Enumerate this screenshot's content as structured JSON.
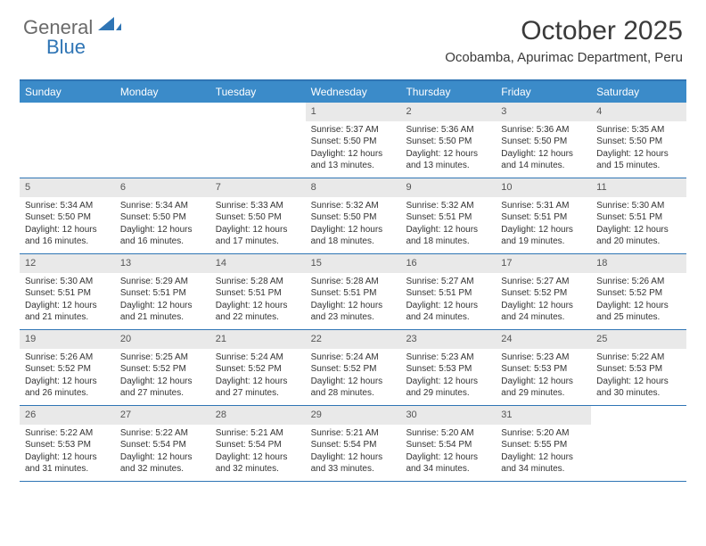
{
  "logo": {
    "part1": "General",
    "part2": "Blue"
  },
  "title": "October 2025",
  "location": "Ocobamba, Apurimac Department, Peru",
  "colors": {
    "header_bar": "#3b8bc9",
    "border": "#2f75b5",
    "daynum_bg": "#e9e9e9",
    "text": "#333333"
  },
  "weekdays": [
    "Sunday",
    "Monday",
    "Tuesday",
    "Wednesday",
    "Thursday",
    "Friday",
    "Saturday"
  ],
  "weeks": [
    [
      {
        "n": "",
        "sr": "",
        "ss": "",
        "dl": ""
      },
      {
        "n": "",
        "sr": "",
        "ss": "",
        "dl": ""
      },
      {
        "n": "",
        "sr": "",
        "ss": "",
        "dl": ""
      },
      {
        "n": "1",
        "sr": "Sunrise: 5:37 AM",
        "ss": "Sunset: 5:50 PM",
        "dl": "Daylight: 12 hours and 13 minutes."
      },
      {
        "n": "2",
        "sr": "Sunrise: 5:36 AM",
        "ss": "Sunset: 5:50 PM",
        "dl": "Daylight: 12 hours and 13 minutes."
      },
      {
        "n": "3",
        "sr": "Sunrise: 5:36 AM",
        "ss": "Sunset: 5:50 PM",
        "dl": "Daylight: 12 hours and 14 minutes."
      },
      {
        "n": "4",
        "sr": "Sunrise: 5:35 AM",
        "ss": "Sunset: 5:50 PM",
        "dl": "Daylight: 12 hours and 15 minutes."
      }
    ],
    [
      {
        "n": "5",
        "sr": "Sunrise: 5:34 AM",
        "ss": "Sunset: 5:50 PM",
        "dl": "Daylight: 12 hours and 16 minutes."
      },
      {
        "n": "6",
        "sr": "Sunrise: 5:34 AM",
        "ss": "Sunset: 5:50 PM",
        "dl": "Daylight: 12 hours and 16 minutes."
      },
      {
        "n": "7",
        "sr": "Sunrise: 5:33 AM",
        "ss": "Sunset: 5:50 PM",
        "dl": "Daylight: 12 hours and 17 minutes."
      },
      {
        "n": "8",
        "sr": "Sunrise: 5:32 AM",
        "ss": "Sunset: 5:50 PM",
        "dl": "Daylight: 12 hours and 18 minutes."
      },
      {
        "n": "9",
        "sr": "Sunrise: 5:32 AM",
        "ss": "Sunset: 5:51 PM",
        "dl": "Daylight: 12 hours and 18 minutes."
      },
      {
        "n": "10",
        "sr": "Sunrise: 5:31 AM",
        "ss": "Sunset: 5:51 PM",
        "dl": "Daylight: 12 hours and 19 minutes."
      },
      {
        "n": "11",
        "sr": "Sunrise: 5:30 AM",
        "ss": "Sunset: 5:51 PM",
        "dl": "Daylight: 12 hours and 20 minutes."
      }
    ],
    [
      {
        "n": "12",
        "sr": "Sunrise: 5:30 AM",
        "ss": "Sunset: 5:51 PM",
        "dl": "Daylight: 12 hours and 21 minutes."
      },
      {
        "n": "13",
        "sr": "Sunrise: 5:29 AM",
        "ss": "Sunset: 5:51 PM",
        "dl": "Daylight: 12 hours and 21 minutes."
      },
      {
        "n": "14",
        "sr": "Sunrise: 5:28 AM",
        "ss": "Sunset: 5:51 PM",
        "dl": "Daylight: 12 hours and 22 minutes."
      },
      {
        "n": "15",
        "sr": "Sunrise: 5:28 AM",
        "ss": "Sunset: 5:51 PM",
        "dl": "Daylight: 12 hours and 23 minutes."
      },
      {
        "n": "16",
        "sr": "Sunrise: 5:27 AM",
        "ss": "Sunset: 5:51 PM",
        "dl": "Daylight: 12 hours and 24 minutes."
      },
      {
        "n": "17",
        "sr": "Sunrise: 5:27 AM",
        "ss": "Sunset: 5:52 PM",
        "dl": "Daylight: 12 hours and 24 minutes."
      },
      {
        "n": "18",
        "sr": "Sunrise: 5:26 AM",
        "ss": "Sunset: 5:52 PM",
        "dl": "Daylight: 12 hours and 25 minutes."
      }
    ],
    [
      {
        "n": "19",
        "sr": "Sunrise: 5:26 AM",
        "ss": "Sunset: 5:52 PM",
        "dl": "Daylight: 12 hours and 26 minutes."
      },
      {
        "n": "20",
        "sr": "Sunrise: 5:25 AM",
        "ss": "Sunset: 5:52 PM",
        "dl": "Daylight: 12 hours and 27 minutes."
      },
      {
        "n": "21",
        "sr": "Sunrise: 5:24 AM",
        "ss": "Sunset: 5:52 PM",
        "dl": "Daylight: 12 hours and 27 minutes."
      },
      {
        "n": "22",
        "sr": "Sunrise: 5:24 AM",
        "ss": "Sunset: 5:52 PM",
        "dl": "Daylight: 12 hours and 28 minutes."
      },
      {
        "n": "23",
        "sr": "Sunrise: 5:23 AM",
        "ss": "Sunset: 5:53 PM",
        "dl": "Daylight: 12 hours and 29 minutes."
      },
      {
        "n": "24",
        "sr": "Sunrise: 5:23 AM",
        "ss": "Sunset: 5:53 PM",
        "dl": "Daylight: 12 hours and 29 minutes."
      },
      {
        "n": "25",
        "sr": "Sunrise: 5:22 AM",
        "ss": "Sunset: 5:53 PM",
        "dl": "Daylight: 12 hours and 30 minutes."
      }
    ],
    [
      {
        "n": "26",
        "sr": "Sunrise: 5:22 AM",
        "ss": "Sunset: 5:53 PM",
        "dl": "Daylight: 12 hours and 31 minutes."
      },
      {
        "n": "27",
        "sr": "Sunrise: 5:22 AM",
        "ss": "Sunset: 5:54 PM",
        "dl": "Daylight: 12 hours and 32 minutes."
      },
      {
        "n": "28",
        "sr": "Sunrise: 5:21 AM",
        "ss": "Sunset: 5:54 PM",
        "dl": "Daylight: 12 hours and 32 minutes."
      },
      {
        "n": "29",
        "sr": "Sunrise: 5:21 AM",
        "ss": "Sunset: 5:54 PM",
        "dl": "Daylight: 12 hours and 33 minutes."
      },
      {
        "n": "30",
        "sr": "Sunrise: 5:20 AM",
        "ss": "Sunset: 5:54 PM",
        "dl": "Daylight: 12 hours and 34 minutes."
      },
      {
        "n": "31",
        "sr": "Sunrise: 5:20 AM",
        "ss": "Sunset: 5:55 PM",
        "dl": "Daylight: 12 hours and 34 minutes."
      },
      {
        "n": "",
        "sr": "",
        "ss": "",
        "dl": ""
      }
    ]
  ]
}
